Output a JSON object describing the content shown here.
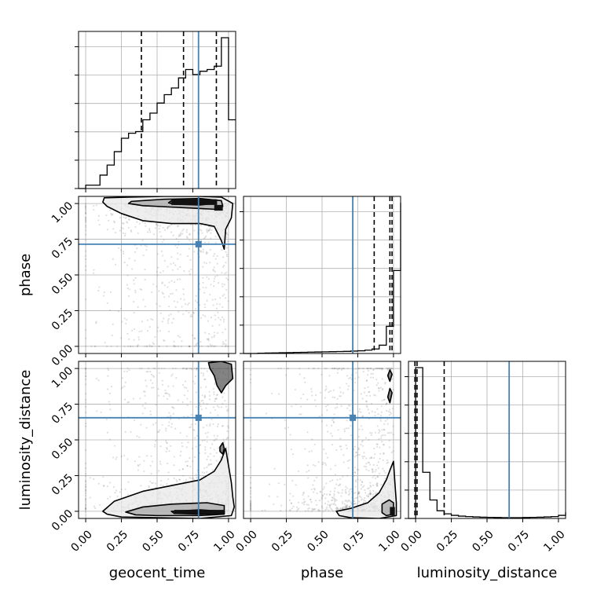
{
  "chart_data": {
    "type": "corner",
    "parameters": [
      "geocent_time",
      "phase",
      "luminosity_distance"
    ],
    "axis_range": [
      -0.05,
      1.05
    ],
    "ticks": [
      0.0,
      0.25,
      0.5,
      0.75,
      1.0
    ],
    "tick_labels": [
      "0.00",
      "0.25",
      "0.50",
      "0.75",
      "1.00"
    ],
    "grid": true,
    "colors": {
      "truth": "#4682b4",
      "hist": "#000000",
      "samples": "#808080",
      "quantile": "#000000"
    },
    "truths": {
      "geocent_time": 0.79,
      "phase": 0.715,
      "luminosity_distance": 0.655
    },
    "diagonal": [
      {
        "parameter": "geocent_time",
        "bin_edges": [
          -0.05,
          0.0,
          0.05,
          0.1,
          0.15,
          0.2,
          0.25,
          0.3,
          0.35,
          0.4,
          0.45,
          0.5,
          0.55,
          0.6,
          0.65,
          0.7,
          0.75,
          0.8,
          0.85,
          0.9,
          0.95,
          1.0,
          1.05
        ],
        "heights": [
          0.0,
          0.02,
          0.02,
          0.08,
          0.14,
          0.22,
          0.3,
          0.33,
          0.34,
          0.41,
          0.45,
          0.51,
          0.56,
          0.6,
          0.66,
          0.71,
          0.68,
          0.7,
          0.71,
          0.73,
          0.9,
          0.41
        ],
        "quantiles": [
          0.39,
          0.685,
          0.915
        ]
      },
      {
        "parameter": "phase",
        "bin_edges": [
          -0.05,
          0.0,
          0.05,
          0.1,
          0.15,
          0.2,
          0.25,
          0.3,
          0.35,
          0.4,
          0.45,
          0.5,
          0.55,
          0.6,
          0.65,
          0.7,
          0.75,
          0.8,
          0.85,
          0.9,
          0.95,
          1.0,
          1.05
        ],
        "heights": [
          0.0,
          0.0,
          0.002,
          0.003,
          0.004,
          0.005,
          0.006,
          0.007,
          0.008,
          0.009,
          0.01,
          0.011,
          0.012,
          0.013,
          0.014,
          0.016,
          0.018,
          0.022,
          0.03,
          0.055,
          0.18,
          0.55,
          1.0
        ],
        "quantiles": [
          0.865,
          0.975,
          0.99
        ]
      },
      {
        "parameter": "luminosity_distance",
        "bin_edges": [
          -0.05,
          0.0,
          0.05,
          0.1,
          0.15,
          0.2,
          0.25,
          0.3,
          0.35,
          0.4,
          0.45,
          0.5,
          0.55,
          0.6,
          0.65,
          0.7,
          0.75,
          0.8,
          0.85,
          0.9,
          0.95,
          1.0,
          1.05
        ],
        "heights": [
          0.0,
          0.98,
          0.3,
          0.12,
          0.05,
          0.03,
          0.02,
          0.015,
          0.012,
          0.01,
          0.008,
          0.007,
          0.006,
          0.005,
          0.005,
          0.005,
          0.006,
          0.007,
          0.008,
          0.01,
          0.012,
          0.02,
          0.04
        ],
        "quantiles": [
          -0.005,
          0.01,
          0.2
        ]
      }
    ],
    "off_diagonal": [
      {
        "x": "geocent_time",
        "y": "phase",
        "contours": [
          [
            [
              0.13,
              1.04
            ],
            [
              0.3,
              1.045
            ],
            [
              0.55,
              1.05
            ],
            [
              0.8,
              1.05
            ],
            [
              0.95,
              1.045
            ],
            [
              1.03,
              1.0
            ],
            [
              1.02,
              0.9
            ],
            [
              0.98,
              0.82
            ],
            [
              0.97,
              0.68
            ],
            [
              0.95,
              0.74
            ],
            [
              0.9,
              0.84
            ],
            [
              0.8,
              0.86
            ],
            [
              0.6,
              0.86
            ],
            [
              0.4,
              0.88
            ],
            [
              0.25,
              0.93
            ],
            [
              0.15,
              0.98
            ],
            [
              0.12,
              1.01
            ]
          ],
          [
            [
              0.32,
              1.015
            ],
            [
              0.55,
              1.03
            ],
            [
              0.8,
              1.035
            ],
            [
              0.95,
              1.02
            ],
            [
              0.96,
              0.98
            ],
            [
              0.9,
              0.96
            ],
            [
              0.8,
              0.965
            ],
            [
              0.6,
              0.975
            ],
            [
              0.4,
              0.985
            ],
            [
              0.3,
              1.0
            ]
          ],
          [
            [
              0.6,
              1.02
            ],
            [
              0.8,
              1.025
            ],
            [
              0.9,
              1.015
            ],
            [
              0.9,
              1.0
            ],
            [
              0.8,
              0.99
            ],
            [
              0.62,
              0.995
            ],
            [
              0.58,
              1.005
            ]
          ]
        ],
        "density_cores": [
          {
            "x": [
              0.6,
              0.92
            ],
            "y": [
              0.99,
              1.03
            ]
          },
          {
            "x": [
              0.9,
              0.96
            ],
            "y": [
              0.95,
              0.99
            ]
          }
        ]
      },
      {
        "x": "geocent_time",
        "y": "luminosity_distance",
        "contours": [
          [
            [
              0.12,
              0.0
            ],
            [
              0.2,
              0.07
            ],
            [
              0.4,
              0.14
            ],
            [
              0.6,
              0.18
            ],
            [
              0.8,
              0.22
            ],
            [
              0.9,
              0.28
            ],
            [
              0.95,
              0.36
            ],
            [
              0.98,
              0.44
            ],
            [
              1.0,
              0.32
            ],
            [
              1.02,
              0.2
            ],
            [
              1.03,
              0.1
            ],
            [
              1.04,
              0.03
            ],
            [
              1.02,
              -0.03
            ],
            [
              0.8,
              -0.05
            ],
            [
              0.5,
              -0.045
            ],
            [
              0.25,
              -0.04
            ],
            [
              0.15,
              -0.02
            ]
          ],
          [
            [
              0.28,
              -0.005
            ],
            [
              0.4,
              0.03
            ],
            [
              0.6,
              0.05
            ],
            [
              0.85,
              0.06
            ],
            [
              0.97,
              0.04
            ],
            [
              0.97,
              -0.02
            ],
            [
              0.8,
              -0.03
            ],
            [
              0.5,
              -0.03
            ],
            [
              0.35,
              -0.025
            ]
          ],
          [
            [
              0.6,
              0.0
            ],
            [
              0.8,
              0.01
            ],
            [
              0.97,
              0.0
            ],
            [
              0.97,
              -0.015
            ],
            [
              0.8,
              -0.02
            ],
            [
              0.62,
              -0.015
            ]
          ],
          [
            [
              0.94,
              0.45
            ],
            [
              0.96,
              0.48
            ],
            [
              0.97,
              0.44
            ],
            [
              0.96,
              0.4
            ],
            [
              0.94,
              0.42
            ]
          ],
          [
            [
              0.86,
              1.04
            ],
            [
              0.95,
              1.05
            ],
            [
              1.02,
              1.03
            ],
            [
              1.03,
              0.93
            ],
            [
              0.98,
              0.88
            ],
            [
              0.95,
              0.83
            ],
            [
              0.92,
              0.88
            ],
            [
              0.9,
              0.95
            ],
            [
              0.87,
              1.0
            ]
          ]
        ],
        "density_cores": [
          {
            "x": [
              0.62,
              0.97
            ],
            "y": [
              -0.02,
              0.01
            ]
          }
        ]
      },
      {
        "x": "phase",
        "y": "luminosity_distance",
        "contours": [
          [
            [
              0.6,
              0.0
            ],
            [
              0.7,
              0.02
            ],
            [
              0.82,
              0.06
            ],
            [
              0.9,
              0.13
            ],
            [
              0.95,
              0.22
            ],
            [
              0.98,
              0.3
            ],
            [
              1.0,
              0.35
            ],
            [
              1.01,
              0.2
            ],
            [
              1.02,
              0.06
            ],
            [
              1.02,
              -0.03
            ],
            [
              0.9,
              -0.05
            ],
            [
              0.7,
              -0.045
            ],
            [
              0.62,
              -0.03
            ]
          ],
          [
            [
              0.92,
              0.05
            ],
            [
              0.97,
              0.08
            ],
            [
              1.0,
              0.06
            ],
            [
              1.0,
              -0.02
            ],
            [
              0.95,
              -0.03
            ],
            [
              0.92,
              -0.01
            ]
          ],
          [
            [
              0.96,
              0.8
            ],
            [
              0.975,
              0.86
            ],
            [
              0.99,
              0.83
            ],
            [
              0.975,
              0.76
            ]
          ],
          [
            [
              0.96,
              0.95
            ],
            [
              0.975,
              0.99
            ],
            [
              0.99,
              0.96
            ],
            [
              0.975,
              0.91
            ]
          ]
        ],
        "density_cores": [
          {
            "x": [
              0.975,
              1.01
            ],
            "y": [
              -0.03,
              0.03
            ]
          }
        ]
      }
    ]
  }
}
